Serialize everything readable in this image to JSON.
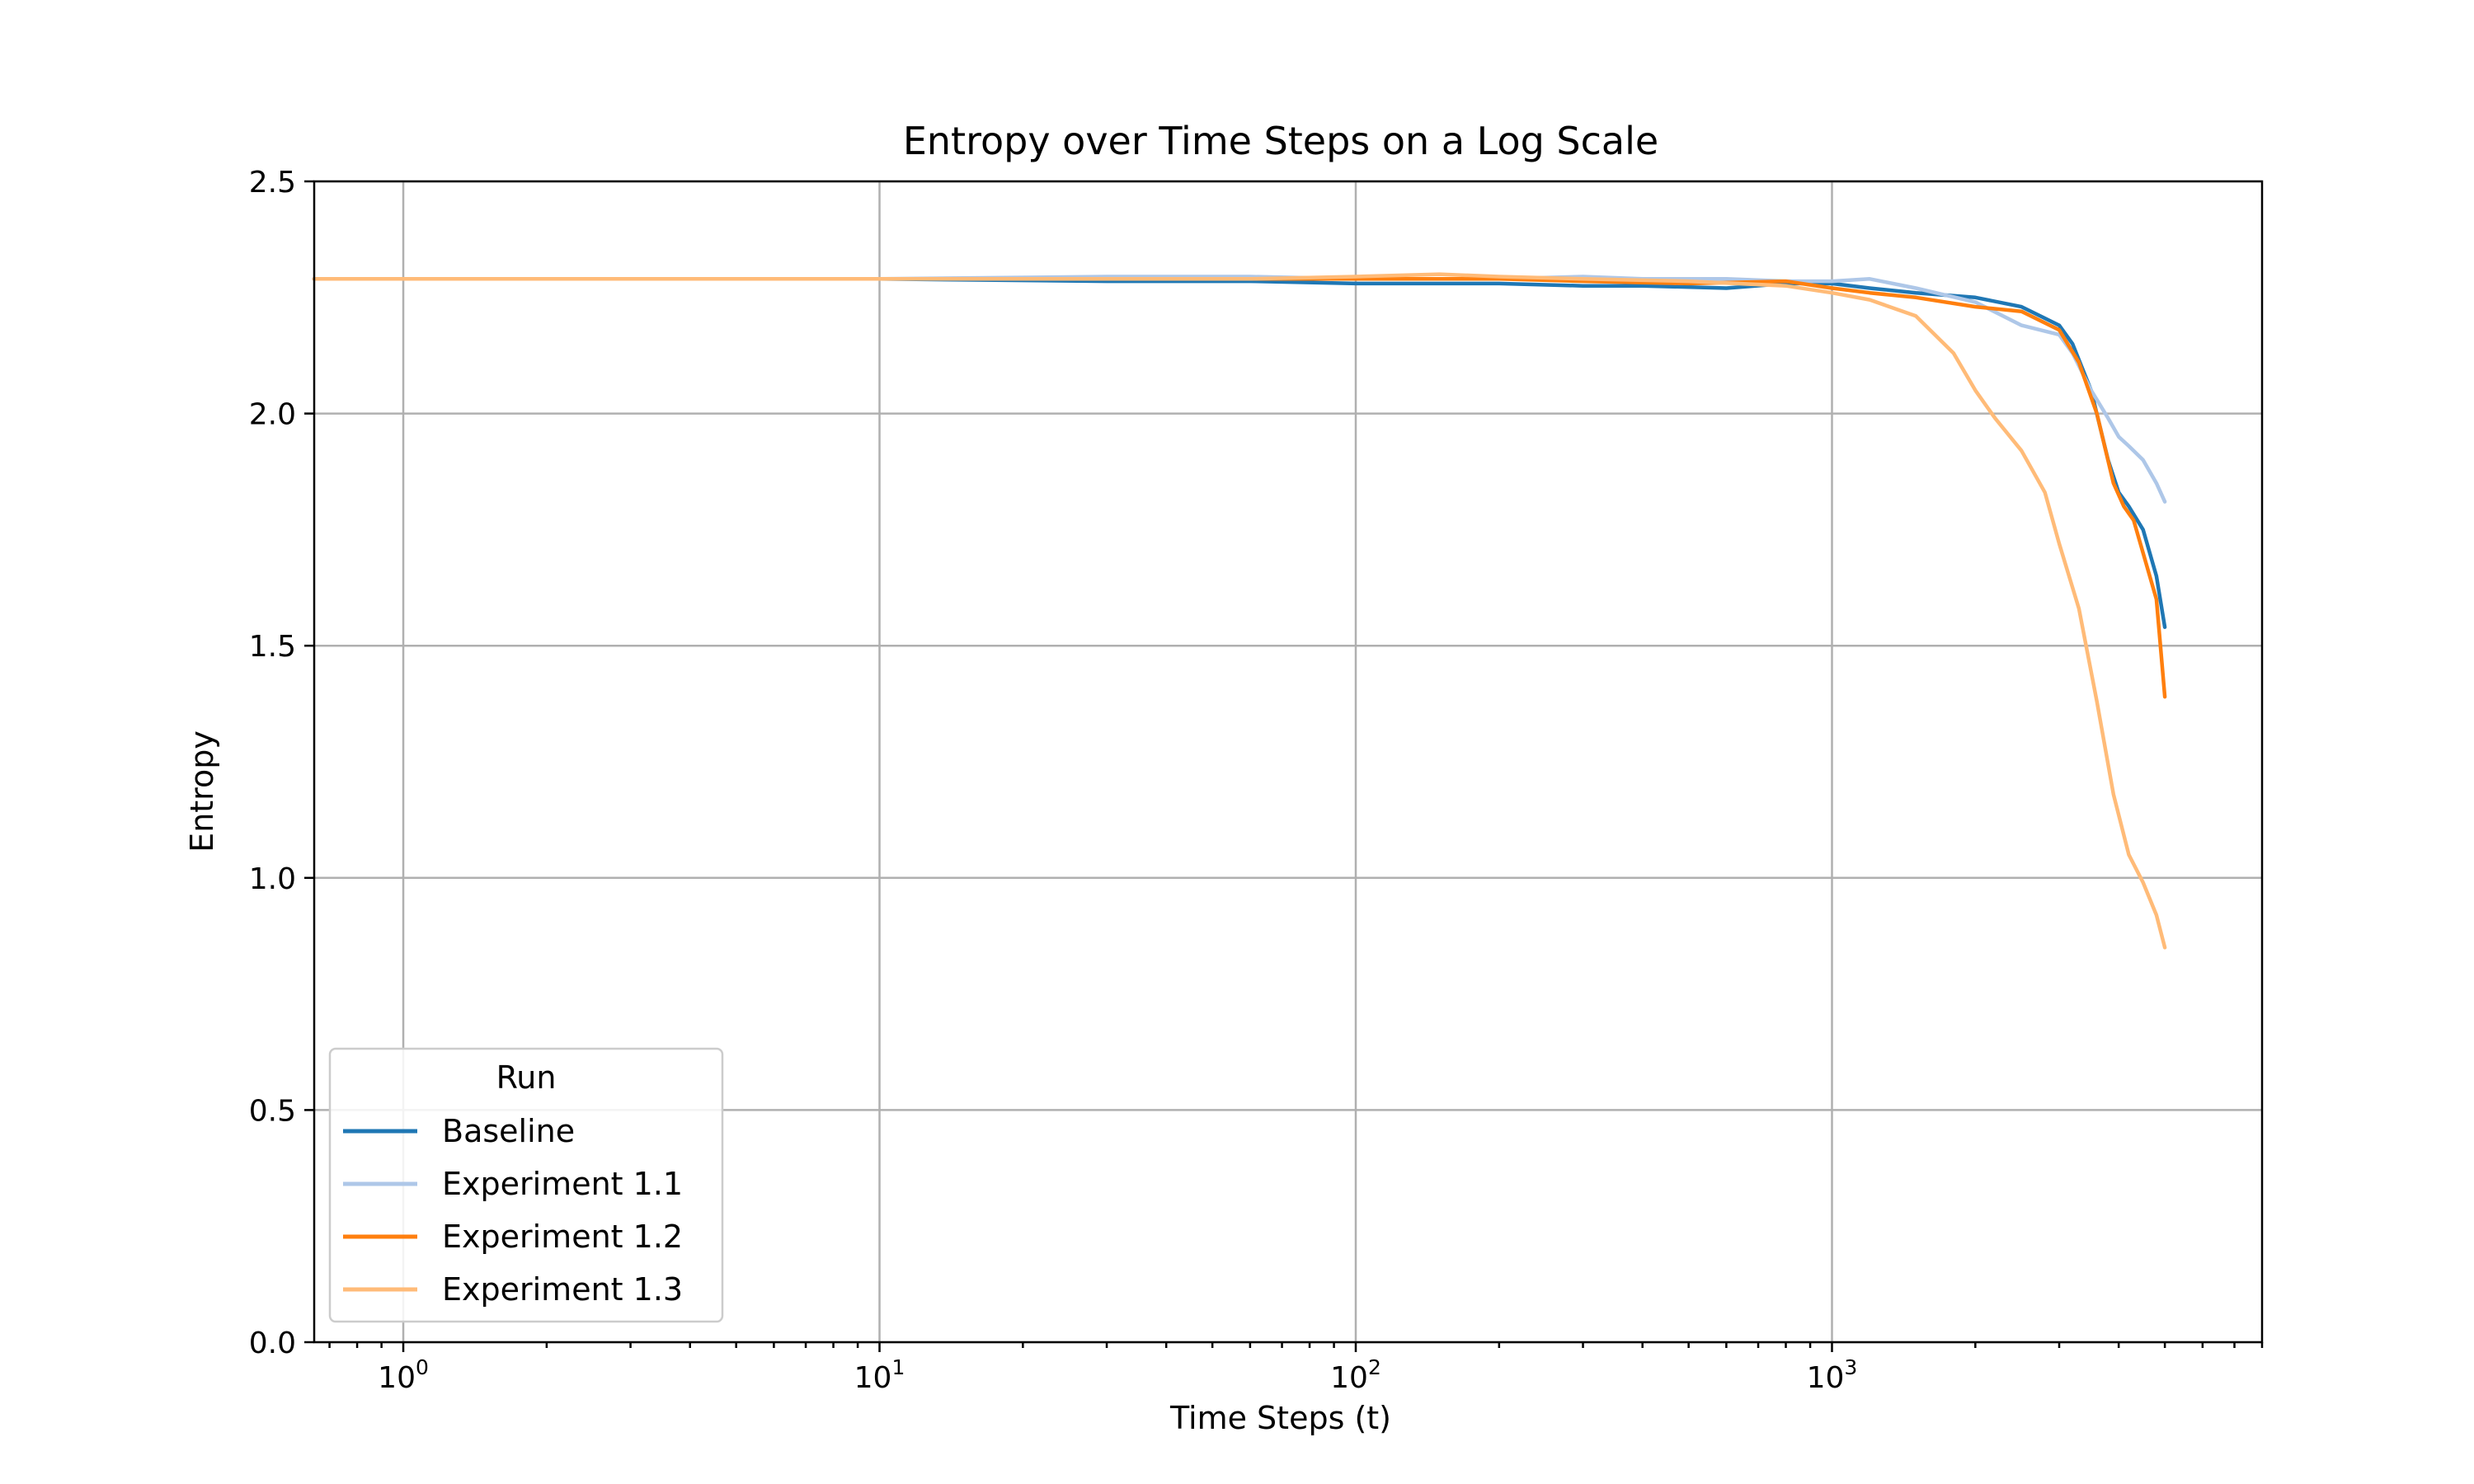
{
  "chart_data": {
    "type": "line",
    "title": "Entropy over Time Steps on a Log Scale",
    "xlabel": "Time Steps (t)",
    "ylabel": "Entropy",
    "xscale": "log",
    "xlim": [
      0.65,
      8000
    ],
    "ylim": [
      0,
      2.5
    ],
    "x_ticks": [
      {
        "base": "10",
        "exp": "0",
        "value": 1
      },
      {
        "base": "10",
        "exp": "1",
        "value": 10
      },
      {
        "base": "10",
        "exp": "2",
        "value": 100
      },
      {
        "base": "10",
        "exp": "3",
        "value": 1000
      }
    ],
    "y_ticks": [
      {
        "label": "0.0",
        "value": 0
      },
      {
        "label": "0.5",
        "value": 0.5
      },
      {
        "label": "1.0",
        "value": 1.0
      },
      {
        "label": "1.5",
        "value": 1.5
      },
      {
        "label": "2.0",
        "value": 2.0
      },
      {
        "label": "2.5",
        "value": 2.5
      }
    ],
    "grid": true,
    "legend": {
      "title": "Run",
      "position": "lower-left"
    },
    "series": [
      {
        "name": "Baseline",
        "color": "#1f77b4",
        "x": [
          0.65,
          1,
          10,
          30,
          60,
          100,
          200,
          300,
          400,
          600,
          800,
          1000,
          1200,
          1500,
          2000,
          2500,
          3000,
          3200,
          3500,
          3800,
          4000,
          4200,
          4500,
          4800,
          5000
        ],
        "y": [
          2.29,
          2.29,
          2.29,
          2.285,
          2.285,
          2.28,
          2.28,
          2.275,
          2.275,
          2.27,
          2.28,
          2.28,
          2.27,
          2.26,
          2.25,
          2.23,
          2.19,
          2.15,
          2.05,
          1.9,
          1.83,
          1.8,
          1.75,
          1.65,
          1.54
        ]
      },
      {
        "name": "Experiment 1.1",
        "color": "#aec7e8",
        "x": [
          0.65,
          1,
          10,
          30,
          60,
          100,
          200,
          300,
          400,
          600,
          800,
          1000,
          1200,
          1500,
          2000,
          2500,
          3000,
          3200,
          3500,
          3800,
          4000,
          4200,
          4500,
          4800,
          5000
        ],
        "y": [
          2.29,
          2.29,
          2.29,
          2.295,
          2.295,
          2.29,
          2.29,
          2.295,
          2.29,
          2.29,
          2.285,
          2.285,
          2.29,
          2.27,
          2.24,
          2.19,
          2.17,
          2.13,
          2.05,
          1.99,
          1.95,
          1.93,
          1.9,
          1.85,
          1.81
        ]
      },
      {
        "name": "Experiment 1.2",
        "color": "#ff7f0e",
        "x": [
          0.65,
          1,
          10,
          30,
          60,
          100,
          150,
          200,
          300,
          500,
          800,
          1000,
          1200,
          1500,
          2000,
          2500,
          3000,
          3300,
          3600,
          3900,
          4100,
          4300,
          4500,
          4800,
          5000
        ],
        "y": [
          2.29,
          2.29,
          2.29,
          2.29,
          2.29,
          2.29,
          2.29,
          2.29,
          2.285,
          2.28,
          2.285,
          2.27,
          2.26,
          2.25,
          2.23,
          2.22,
          2.18,
          2.11,
          2.0,
          1.85,
          1.8,
          1.77,
          1.7,
          1.6,
          1.39
        ]
      },
      {
        "name": "Experiment 1.3",
        "color": "#ffbb78",
        "x": [
          0.65,
          1,
          10,
          30,
          60,
          100,
          150,
          200,
          300,
          500,
          800,
          1000,
          1200,
          1500,
          1800,
          2000,
          2200,
          2500,
          2800,
          3000,
          3300,
          3600,
          3900,
          4200,
          4500,
          4800,
          5000
        ],
        "y": [
          2.29,
          2.29,
          2.29,
          2.29,
          2.29,
          2.295,
          2.3,
          2.295,
          2.29,
          2.285,
          2.275,
          2.26,
          2.245,
          2.21,
          2.13,
          2.05,
          1.99,
          1.92,
          1.83,
          1.72,
          1.58,
          1.38,
          1.18,
          1.05,
          0.99,
          0.92,
          0.85
        ]
      }
    ]
  }
}
